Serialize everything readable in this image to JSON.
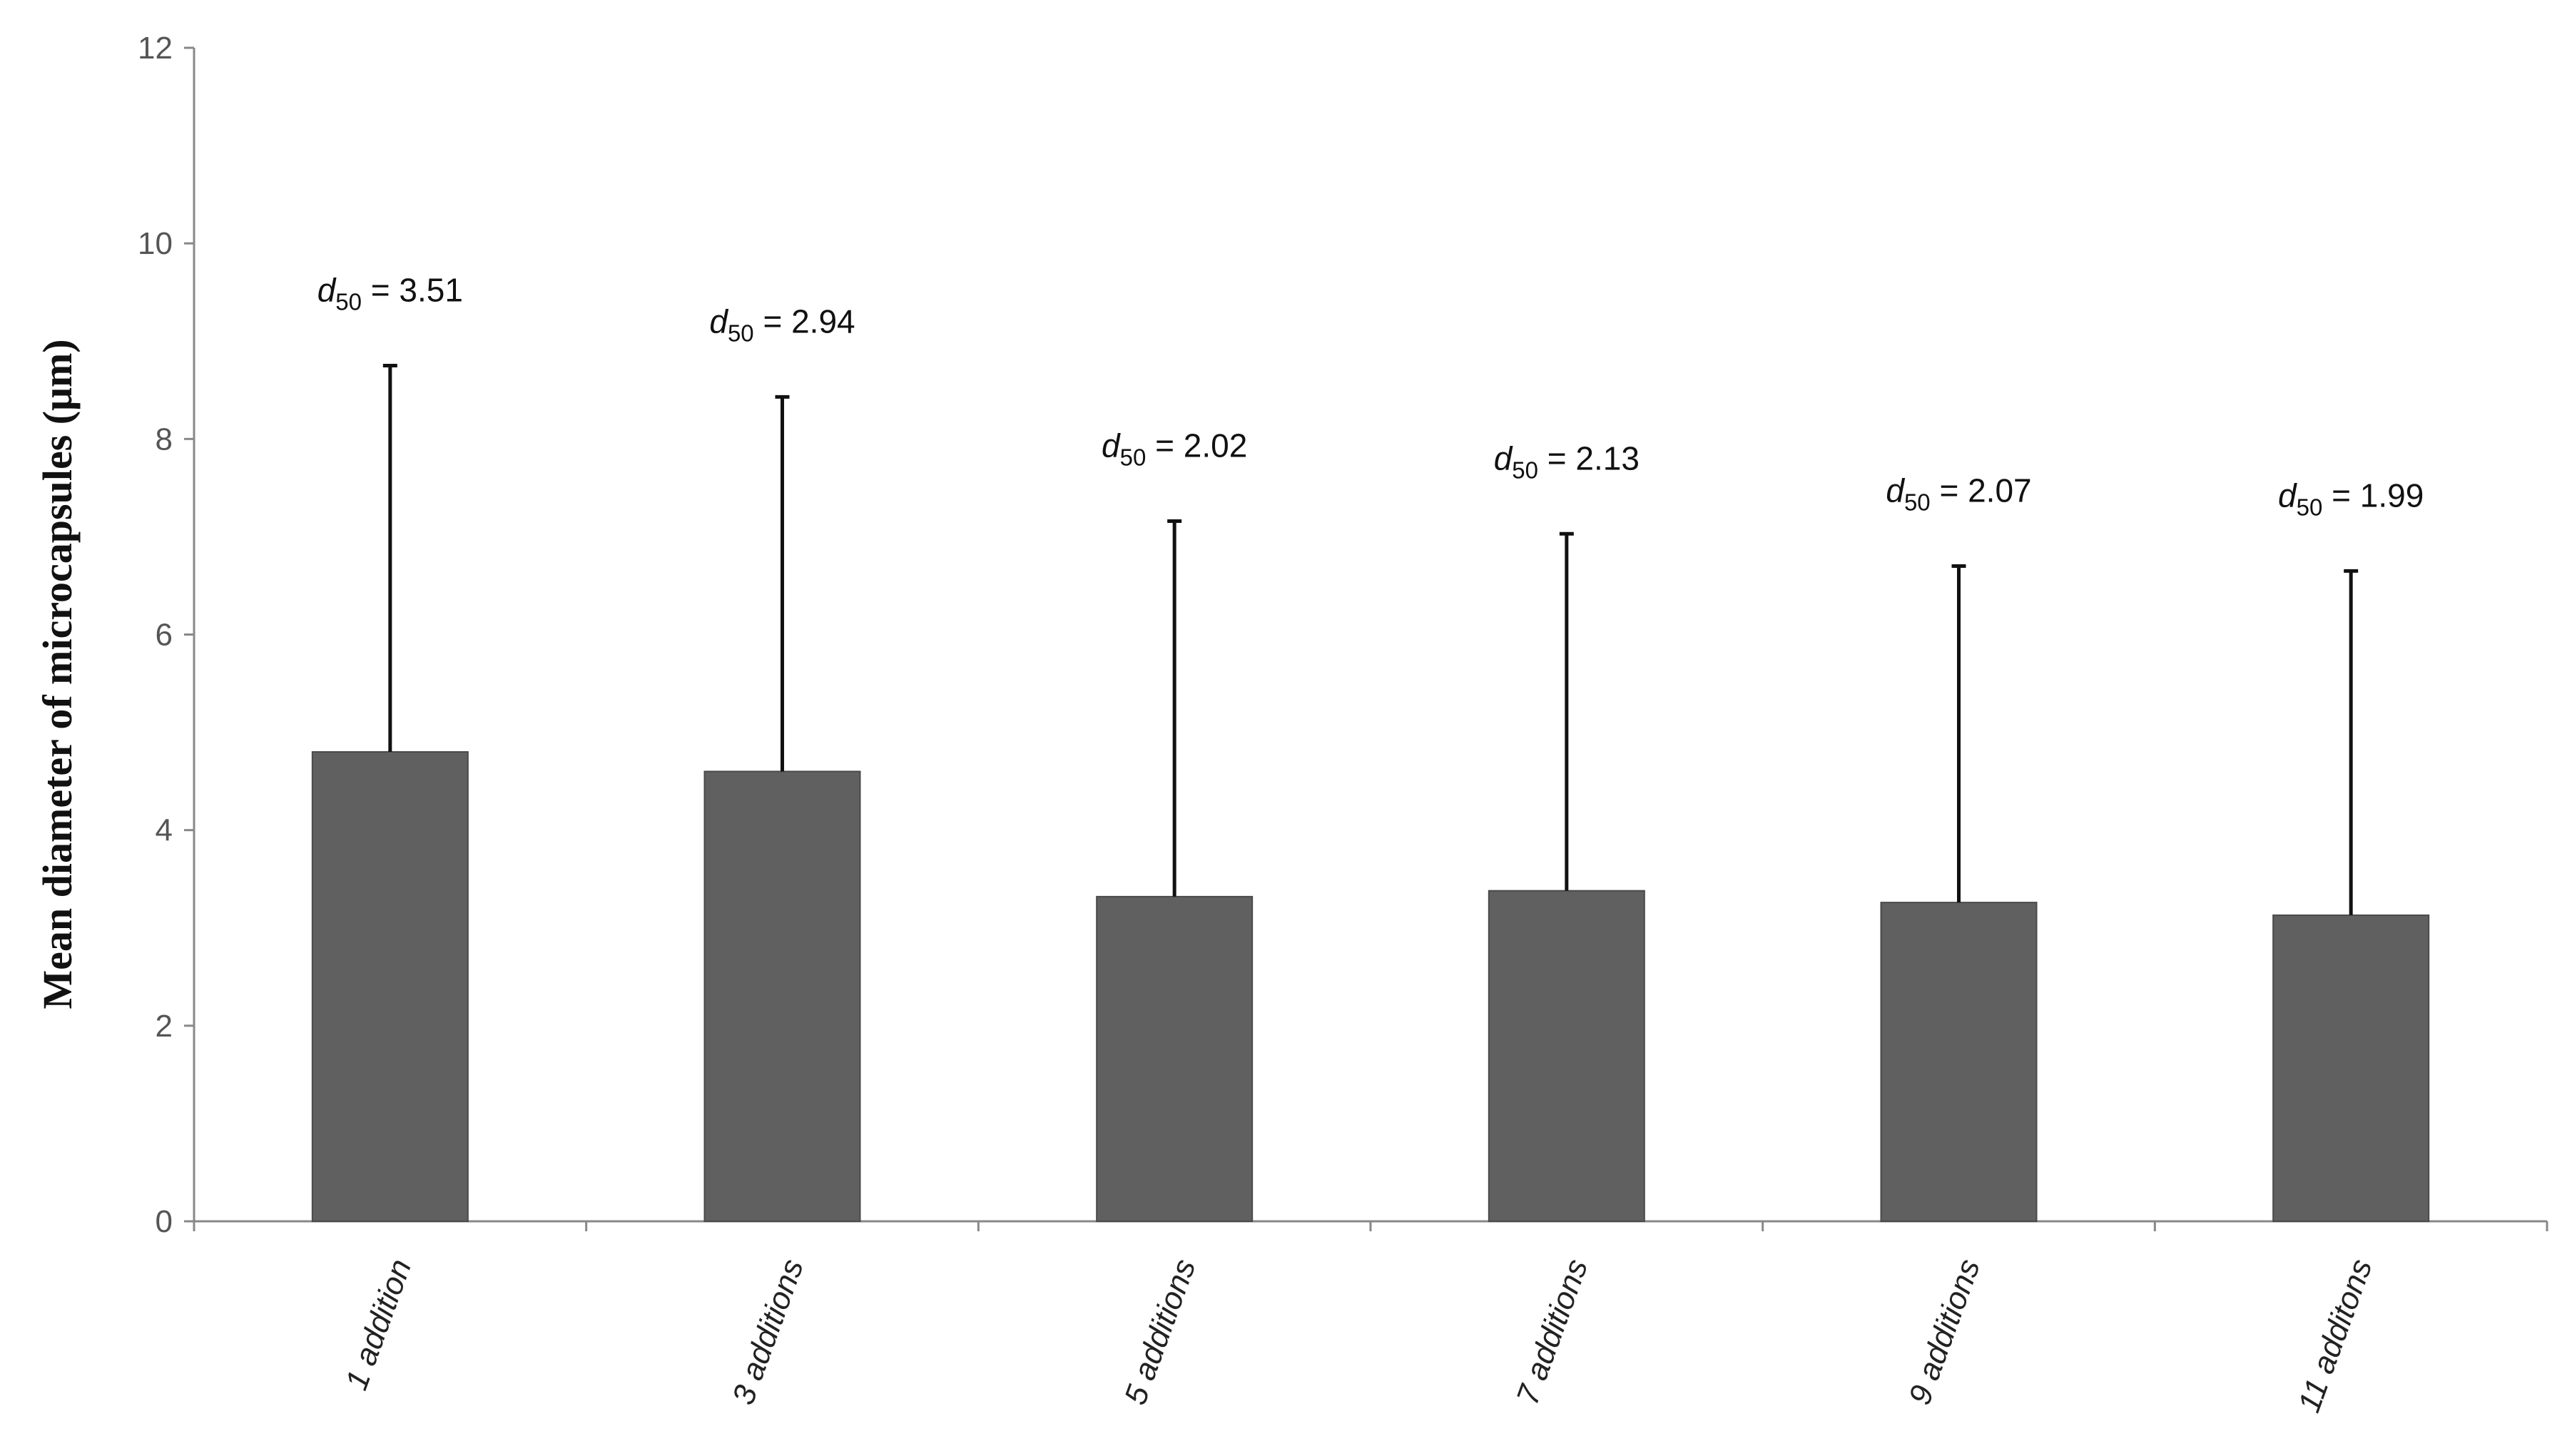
{
  "chart_data": {
    "type": "bar",
    "categories": [
      "1 addition",
      "3 additions",
      "5 additions",
      "7 additions",
      "9 additions",
      "11 additons"
    ],
    "values": [
      4.8,
      4.6,
      3.32,
      3.38,
      3.26,
      3.13
    ],
    "error_upper": [
      8.75,
      8.43,
      7.16,
      7.03,
      6.7,
      6.65
    ],
    "annotations": [
      {
        "symbol": "d",
        "subscript": "50",
        "text": " = 3.51"
      },
      {
        "symbol": "d",
        "subscript": "50",
        "text": " = 2.94"
      },
      {
        "symbol": "d",
        "subscript": "50",
        "text": " = 2.02"
      },
      {
        "symbol": "d",
        "subscript": "50",
        "text": " = 2.13"
      },
      {
        "symbol": "d",
        "subscript": "50",
        "text": " = 2.07"
      },
      {
        "symbol": "d",
        "subscript": "50",
        "text": " = 1.99"
      }
    ],
    "ylabel": "Mean diameter of microcapsules (μm)",
    "xlabel": "",
    "ylim": [
      0,
      12
    ],
    "yticks": [
      "0",
      "2",
      "4",
      "6",
      "8",
      "10",
      "12"
    ],
    "grid": false,
    "bar_color": "#606060"
  }
}
